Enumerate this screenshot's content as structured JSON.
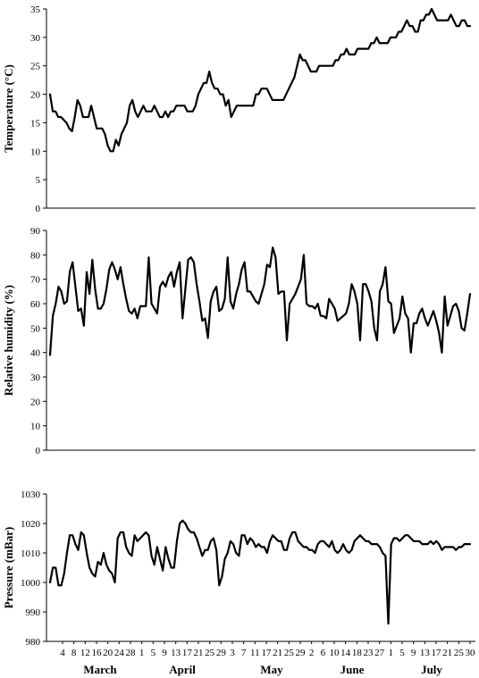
{
  "chart_data": {
    "type": "line",
    "x_tick_labels": [
      "4",
      "8",
      "12",
      "16",
      "20",
      "24",
      "28",
      "1",
      "5",
      "9",
      "13",
      "17",
      "21",
      "25",
      "29",
      "3",
      "7",
      "11",
      "17",
      "21",
      "25",
      "29",
      "2",
      "6",
      "10",
      "14",
      "18",
      "23",
      "27",
      "1",
      "5",
      "9",
      "13",
      "17",
      "21",
      "25",
      "30"
    ],
    "months": [
      "March",
      "April",
      "May",
      "June",
      "July"
    ],
    "panels": [
      {
        "ylabel": "Temperature (°C)",
        "ylim": [
          0,
          35
        ],
        "yticks": [
          0,
          5,
          10,
          15,
          20,
          25,
          30,
          35
        ],
        "ytick_labels": [
          "0",
          "5",
          "10",
          "15",
          "20",
          "25",
          "30",
          "35"
        ],
        "values": [
          20,
          17,
          17,
          16,
          16,
          15.5,
          15,
          14,
          13.5,
          16,
          19,
          18,
          16,
          16,
          16,
          18,
          16,
          14,
          14,
          14,
          13,
          11,
          10,
          10,
          12,
          11,
          13,
          14,
          15,
          18,
          19,
          17,
          16,
          17,
          18,
          17,
          17,
          17,
          18,
          17,
          16,
          16,
          17,
          16,
          17,
          17,
          18,
          18,
          18,
          18,
          17,
          17,
          17,
          18,
          20,
          21,
          22,
          22,
          24,
          22,
          21,
          21,
          20,
          20,
          18,
          19,
          16,
          17,
          18,
          18,
          18,
          18,
          18,
          18,
          18,
          20,
          20,
          21,
          21,
          21,
          20,
          19,
          19,
          19,
          19,
          19,
          20,
          21,
          22,
          23,
          25,
          27,
          26,
          26,
          25,
          24,
          24,
          24,
          25,
          25,
          25,
          25,
          25,
          25,
          26,
          26,
          27,
          27,
          28,
          27,
          27,
          27,
          28,
          28,
          28,
          28,
          28,
          29,
          29,
          30,
          29,
          29,
          29,
          29,
          30,
          30,
          30,
          31,
          31,
          32,
          33,
          32,
          32,
          31,
          31,
          33,
          33,
          34,
          34,
          35,
          34,
          33,
          33,
          33,
          33,
          33,
          34,
          33,
          32,
          32,
          33,
          33,
          32,
          32
        ]
      },
      {
        "ylabel": "Relative humidity (%)",
        "ylim": [
          0,
          90
        ],
        "yticks": [
          0,
          10,
          20,
          30,
          40,
          50,
          60,
          70,
          80,
          90
        ],
        "ytick_labels": [
          "0",
          "10",
          "20",
          "30",
          "40",
          "50",
          "60",
          "70",
          "80",
          "90"
        ],
        "values": [
          39,
          55,
          60,
          67,
          65,
          60,
          61,
          73,
          77,
          67,
          57,
          58,
          51,
          73,
          64,
          78,
          66,
          58,
          58,
          60,
          66,
          74,
          77,
          74,
          70,
          75,
          68,
          62,
          57,
          56,
          58,
          54,
          59,
          59,
          59,
          79,
          60,
          58,
          56,
          67,
          69,
          67,
          71,
          73,
          67,
          73,
          77,
          54,
          66,
          78,
          79,
          77,
          68,
          61,
          53,
          54,
          46,
          61,
          65,
          67,
          57,
          58,
          62,
          79,
          61,
          58,
          64,
          68,
          74,
          77,
          65,
          65,
          63,
          61,
          60,
          64,
          68,
          76,
          75,
          83,
          79,
          64,
          65,
          65,
          45,
          60,
          62,
          64,
          67,
          70,
          80,
          60,
          59,
          59,
          58,
          60,
          55,
          55,
          54,
          62,
          60,
          58,
          53,
          54,
          55,
          56,
          60,
          68,
          65,
          60,
          45,
          68,
          68,
          65,
          61,
          50,
          45,
          65,
          68,
          75,
          61,
          60,
          48,
          51,
          54,
          63,
          56,
          54,
          40,
          52,
          52,
          56,
          58,
          54,
          51,
          54,
          57,
          53,
          48,
          40,
          63,
          51,
          55,
          59,
          60,
          57,
          50,
          49,
          56,
          64
        ]
      },
      {
        "ylabel": "Pressure (mBar)",
        "ylim": [
          980,
          1030
        ],
        "yticks": [
          980,
          990,
          1000,
          1010,
          1020,
          1030
        ],
        "ytick_labels": [
          "980",
          "990",
          "1000",
          "1010",
          "1020",
          "1030"
        ],
        "values": [
          1000,
          1005,
          1005,
          999,
          999,
          1003,
          1010,
          1016,
          1016,
          1013,
          1011,
          1017,
          1016,
          1010,
          1005,
          1003,
          1002,
          1007,
          1006,
          1010,
          1006,
          1004,
          1003,
          1000,
          1015,
          1017,
          1017,
          1012,
          1010,
          1009,
          1016,
          1014,
          1015,
          1016,
          1017,
          1016,
          1009,
          1006,
          1012,
          1008,
          1004,
          1012,
          1008,
          1005,
          1005,
          1014,
          1020,
          1021,
          1020,
          1018,
          1017,
          1017,
          1015,
          1012,
          1009,
          1011,
          1011,
          1014,
          1015,
          1011,
          999,
          1002,
          1008,
          1010,
          1014,
          1013,
          1010,
          1009,
          1016,
          1016,
          1013,
          1015,
          1014,
          1012,
          1013,
          1012,
          1012,
          1010,
          1014,
          1016,
          1015,
          1014,
          1014,
          1011,
          1011,
          1015,
          1017,
          1017,
          1014,
          1013,
          1012,
          1012,
          1011,
          1011,
          1010,
          1013,
          1014,
          1014,
          1013,
          1012,
          1014,
          1011,
          1010,
          1011,
          1013,
          1011,
          1010,
          1011,
          1014,
          1015,
          1016,
          1015,
          1014,
          1014,
          1013,
          1013,
          1013,
          1012,
          1010,
          1009,
          986,
          1013,
          1015,
          1015,
          1014,
          1015,
          1016,
          1016,
          1015,
          1014,
          1014,
          1014,
          1013,
          1013,
          1013,
          1014,
          1013,
          1014,
          1013,
          1011,
          1012,
          1012,
          1012,
          1012,
          1011,
          1012,
          1012,
          1013,
          1013,
          1013
        ]
      }
    ]
  }
}
